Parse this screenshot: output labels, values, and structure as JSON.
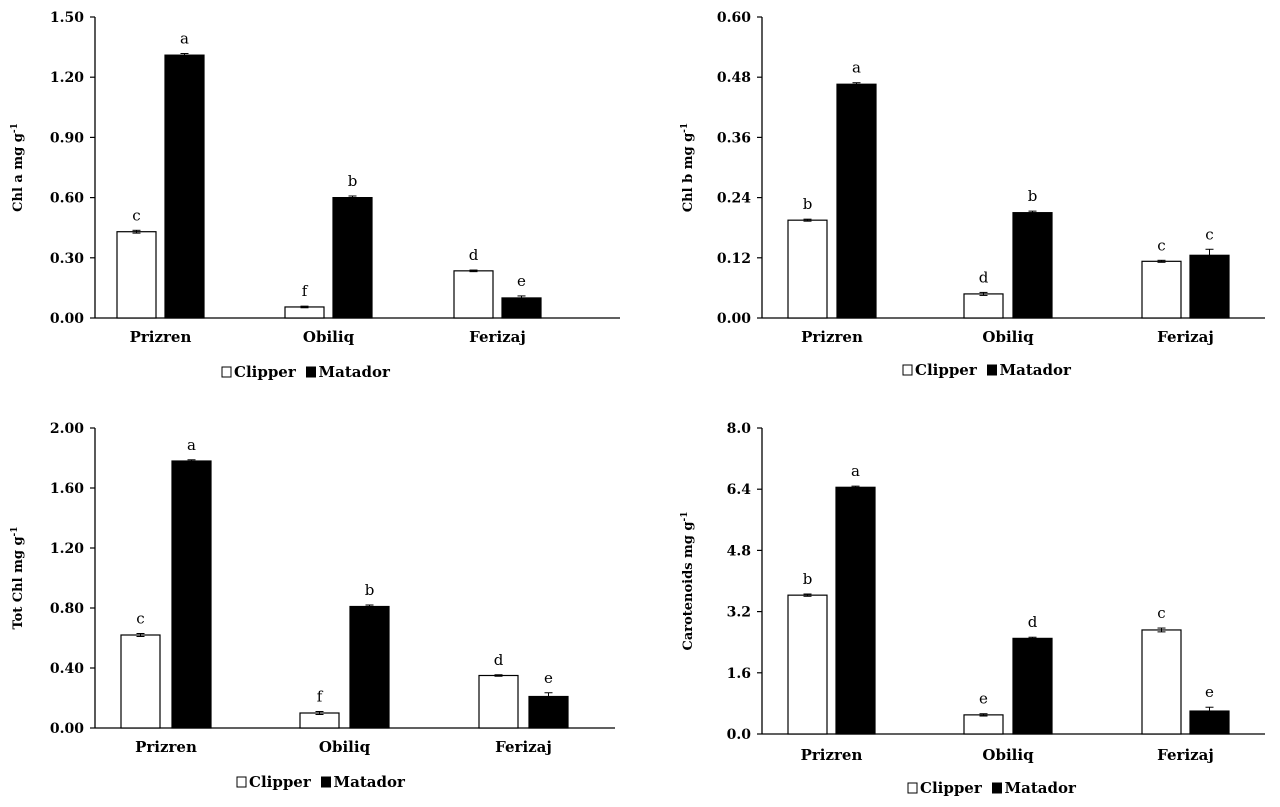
{
  "chart_data": [
    {
      "type": "bar",
      "ylabel": "Chl a mg g",
      "ylabel_sup": "-1",
      "categories": [
        "Prizren",
        "Obiliq",
        "Ferizaj"
      ],
      "ylim": [
        0,
        1.5
      ],
      "yticks": [
        "0.00",
        "0.30",
        "0.60",
        "0.90",
        "1.20",
        "1.50"
      ],
      "series": [
        {
          "name": "Clipper",
          "color": "#ffffff",
          "values": [
            0.43,
            0.055,
            0.235
          ],
          "errors": [
            0.007,
            0.004,
            0.004
          ],
          "labels": [
            "c",
            "f",
            "d"
          ]
        },
        {
          "name": "Matador",
          "color": "#000000",
          "values": [
            1.31,
            0.6,
            0.1
          ],
          "errors": [
            0.008,
            0.008,
            0.01
          ],
          "labels": [
            "a",
            "b",
            "e"
          ]
        }
      ],
      "legend": "bottom"
    },
    {
      "type": "bar",
      "ylabel": "Chl b mg g",
      "ylabel_sup": "-1",
      "categories": [
        "Prizren",
        "Obiliq",
        "Ferizaj"
      ],
      "ylim": [
        0,
        0.6
      ],
      "yticks": [
        "0.00",
        "0.12",
        "0.24",
        "0.36",
        "0.48",
        "0.60"
      ],
      "series": [
        {
          "name": "Clipper",
          "color": "#ffffff",
          "values": [
            0.195,
            0.048,
            0.113
          ],
          "errors": [
            0.002,
            0.003,
            0.002
          ],
          "labels": [
            "b",
            "d",
            "c"
          ]
        },
        {
          "name": "Matador",
          "color": "#000000",
          "values": [
            0.466,
            0.21,
            0.125
          ],
          "errors": [
            0.003,
            0.003,
            0.012
          ],
          "labels": [
            "a",
            "b",
            "c"
          ]
        }
      ],
      "legend": "bottom"
    },
    {
      "type": "bar",
      "ylabel": "Tot Chl mg g",
      "ylabel_sup": "-1",
      "categories": [
        "Prizren",
        "Obiliq",
        "Ferizaj"
      ],
      "ylim": [
        0,
        2.0
      ],
      "yticks": [
        "0.00",
        "0.40",
        "0.80",
        "1.20",
        "1.60",
        "2.00"
      ],
      "series": [
        {
          "name": "Clipper",
          "color": "#ffffff",
          "values": [
            0.62,
            0.1,
            0.35
          ],
          "errors": [
            0.01,
            0.01,
            0.005
          ],
          "labels": [
            "c",
            "f",
            "d"
          ]
        },
        {
          "name": "Matador",
          "color": "#000000",
          "values": [
            1.78,
            0.81,
            0.21
          ],
          "errors": [
            0.008,
            0.01,
            0.025
          ],
          "labels": [
            "a",
            "b",
            "e"
          ]
        }
      ],
      "legend": "bottom"
    },
    {
      "type": "bar",
      "ylabel": "Carotenoids mg g",
      "ylabel_sup": "-1",
      "categories": [
        "Prizren",
        "Obiliq",
        "Ferizaj"
      ],
      "ylim": [
        0,
        8.0
      ],
      "yticks": [
        "0.0",
        "1.6",
        "3.2",
        "4.8",
        "6.4",
        "8.0"
      ],
      "series": [
        {
          "name": "Clipper",
          "color": "#ffffff",
          "values": [
            3.63,
            0.5,
            2.72
          ],
          "errors": [
            0.03,
            0.03,
            0.05
          ],
          "labels": [
            "b",
            "e",
            "c"
          ]
        },
        {
          "name": "Matador",
          "color": "#000000",
          "values": [
            6.45,
            2.5,
            0.6
          ],
          "errors": [
            0.03,
            0.03,
            0.1
          ],
          "labels": [
            "a",
            "d",
            "e"
          ]
        }
      ],
      "legend": "bottom"
    }
  ]
}
